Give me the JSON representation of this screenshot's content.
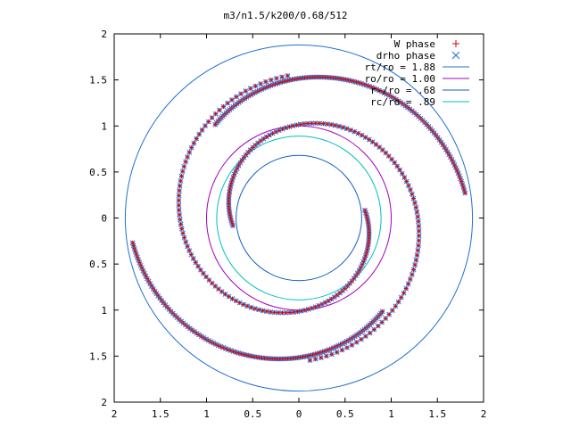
{
  "chart_data": {
    "type": "scatter",
    "title": "m3/n1.5/k200/0.68/512",
    "xlabel": "",
    "ylabel": "",
    "grid": false,
    "legend_position": "top-right",
    "x_ticks": [
      "2",
      "1.5",
      "1",
      "0.5",
      "0",
      "0.5",
      "1",
      "1.5",
      "2"
    ],
    "y_ticks": [
      "2",
      "1.5",
      "1",
      "0.5",
      "0",
      "0.5",
      "1",
      "1.5",
      "2"
    ],
    "xlim": [
      -2,
      2
    ],
    "ylim": [
      -2,
      2
    ],
    "legend": [
      {
        "label": "W phase",
        "kind": "point",
        "symbol": "plus",
        "color": "#e00000"
      },
      {
        "label": "drho phase",
        "kind": "point",
        "symbol": "x",
        "color": "#3080e0"
      },
      {
        "label": "rt/ro = 1.88",
        "kind": "line",
        "color": "#2070d0"
      },
      {
        "label": "ro/ro = 1.00",
        "kind": "line",
        "color": "#a000c0"
      },
      {
        "label": "r-/ro = .68",
        "kind": "line",
        "color": "#1060c0"
      },
      {
        "label": "rc/ro = .89",
        "kind": "line",
        "color": "#00c0c0"
      }
    ],
    "circles": [
      {
        "label": "rt/ro = 1.88",
        "r": 1.88,
        "color": "#2070d0"
      },
      {
        "label": "ro/ro = 1.00",
        "r": 1.0,
        "color": "#a000c0"
      },
      {
        "label": "r-/ro = .68",
        "r": 0.68,
        "color": "#1060c0"
      },
      {
        "label": "rc/ro = .89",
        "r": 0.89,
        "color": "#00c0c0"
      }
    ],
    "series": [
      {
        "name": "W phase",
        "arms": [
          {
            "r0": 1.55,
            "r1": 0.72,
            "theta0": 1.65,
            "theta1": 6.4
          },
          {
            "r0": 1.55,
            "r1": 0.72,
            "theta0": 4.79,
            "theta1": 9.54
          },
          {
            "r0": 1.82,
            "r1": 1.36,
            "theta0": 0.15,
            "theta1": 2.3
          },
          {
            "r0": 1.82,
            "r1": 1.36,
            "theta0": 3.29,
            "theta1": 5.44
          }
        ]
      },
      {
        "name": "drho phase",
        "arms": [
          {
            "r0": 1.55,
            "r1": 0.72,
            "theta0": 1.65,
            "theta1": 6.4
          },
          {
            "r0": 1.55,
            "r1": 0.72,
            "theta0": 4.79,
            "theta1": 9.54
          },
          {
            "r0": 1.82,
            "r1": 1.36,
            "theta0": 0.15,
            "theta1": 2.3
          },
          {
            "r0": 1.82,
            "r1": 1.36,
            "theta0": 3.29,
            "theta1": 5.44
          }
        ]
      }
    ]
  }
}
